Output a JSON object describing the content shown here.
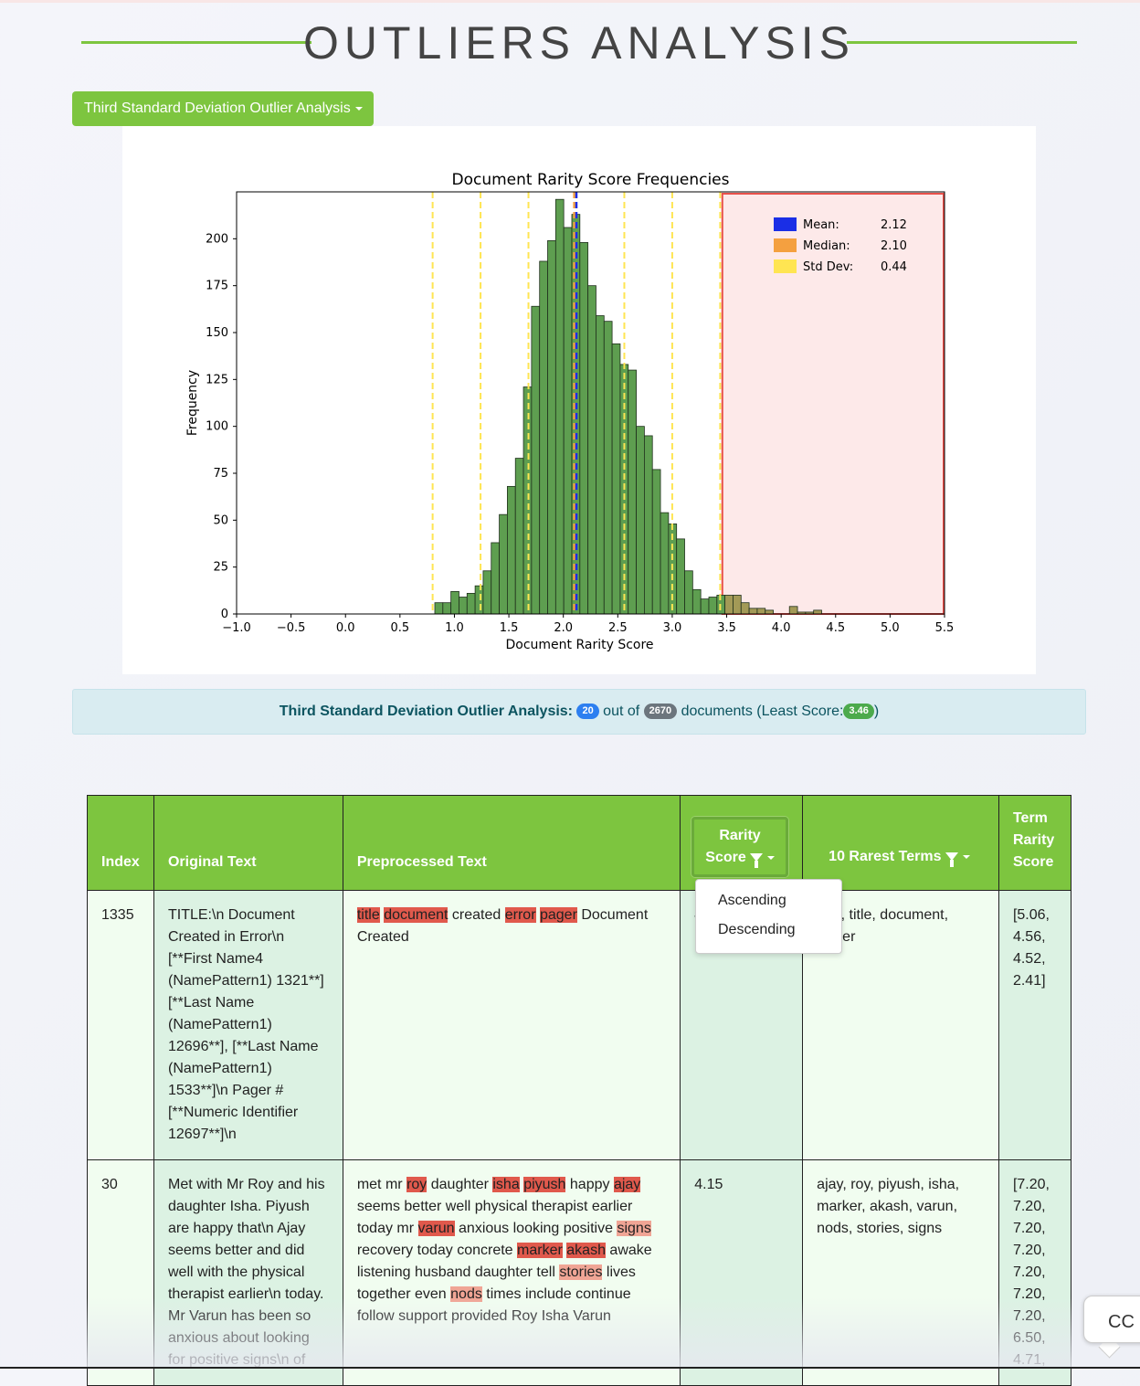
{
  "page_title": "OUTLIERS ANALYSIS",
  "colors": {
    "accent": "#7dc53f",
    "mean": "#1a2ee6",
    "median": "#f4a040",
    "std_dev": "#ffe552",
    "bars": "#5e9e50",
    "highlight": "#e0594c"
  },
  "analysis_dropdown": {
    "label": "Third Standard Deviation Outlier Analysis"
  },
  "summary": {
    "label": "Third Standard Deviation Outlier Analysis:",
    "count": "20",
    "out_of": "out of",
    "total": "2670",
    "documents": "documents (Least Score:",
    "least_score": "3.46",
    "close": ")"
  },
  "chart_data": {
    "type": "bar",
    "title": "Document Rarity Score Frequencies",
    "xlabel": "Document Rarity Score",
    "ylabel": "Frequency",
    "xlim": [
      -1.0,
      5.5
    ],
    "ylim": [
      0,
      225
    ],
    "x_ticks": [
      "−1.0",
      "−0.5",
      "0.0",
      "0.5",
      "1.0",
      "1.5",
      "2.0",
      "2.5",
      "3.0",
      "3.5",
      "4.0",
      "4.5",
      "5.0",
      "5.5"
    ],
    "x_tick_values": [
      -1.0,
      -0.5,
      0.0,
      0.5,
      1.0,
      1.5,
      2.0,
      2.5,
      3.0,
      3.5,
      4.0,
      4.5,
      5.0,
      5.5
    ],
    "y_ticks": [
      "0",
      "25",
      "50",
      "75",
      "100",
      "125",
      "150",
      "175",
      "200"
    ],
    "y_tick_values": [
      0,
      25,
      50,
      75,
      100,
      125,
      150,
      175,
      200
    ],
    "bin_start": 0.82,
    "bin_width": 0.074,
    "values": [
      6,
      6,
      12,
      9,
      11,
      15,
      23,
      38,
      53,
      68,
      83,
      121,
      164,
      188,
      199,
      221,
      206,
      213,
      198,
      175,
      159,
      156,
      144,
      133,
      130,
      100,
      95,
      77,
      54,
      48,
      40,
      23,
      13,
      8,
      9,
      10,
      10,
      10,
      6,
      3,
      3,
      2,
      0,
      0,
      4,
      1,
      1,
      2
    ],
    "mean_line": 2.12,
    "median_line": 2.1,
    "std_lines": [
      0.8,
      1.24,
      1.68,
      2.56,
      3.0,
      3.44
    ],
    "outlier_region": [
      3.46,
      5.5
    ],
    "legend": [
      {
        "name": "Mean:",
        "value": "2.12"
      },
      {
        "name": "Median:",
        "value": "2.10"
      },
      {
        "name": "Std Dev:",
        "value": "0.44"
      }
    ],
    "legend_position": "top-right"
  },
  "table": {
    "headers": {
      "index": "Index",
      "original": "Original Text",
      "preprocessed": "Preprocessed Text",
      "rarity_line1": "Rarity",
      "rarity_line2": "Score",
      "rarest": "10 Rarest Terms",
      "term_line1": "Term",
      "term_line2": "Rarity",
      "term_line3": "Score"
    },
    "sort_menu": {
      "ascending": "Ascending",
      "descending": "Descending"
    },
    "rows": [
      {
        "index": "1335",
        "original_lines": [
          "TITLE:\\n Document",
          "Created in Error\\n",
          "[**First Name4",
          "(NamePattern1) 1321**]",
          "[**Last Name",
          "(NamePattern1)",
          "12696**], [**Last Name",
          "(NamePattern1)",
          "1533**]\\n Pager #",
          "[**Numeric Identifier",
          "12697**]\\n"
        ],
        "pre": {
          "w1": "title",
          "w2": "document",
          "t1": "created",
          "w3": "error",
          "w4": "pager",
          "t2": "Document",
          "t3": "Created"
        },
        "rarity_score": "4",
        "rarest_terms": "error, title, document, pager",
        "rarest_visible_line1": "r, title, document,",
        "rarest_visible_line2": "er",
        "term_scores": [
          "[5.06,",
          "4.56,",
          "4.52,",
          "2.41]"
        ]
      },
      {
        "index": "30",
        "original_lines": [
          "Met with Mr Roy and his",
          "daughter Isha. Piyush",
          "are happy that\\n Ajay",
          "seems better and did",
          "well with the physical",
          "therapist earlier\\n today.",
          "Mr Varun has been so",
          "anxious about looking",
          "for positive signs\\n of"
        ],
        "pre": {
          "t1": "met mr",
          "w1": "roy",
          "t2": "daughter",
          "w2": "isha",
          "w3": "piyush",
          "t3": "happy",
          "w4": "ajay",
          "t4": "seems better well physical therapist earlier",
          "t5": "today mr",
          "w5": "varun",
          "t6": "anxious looking positive",
          "w6": "signs",
          "t7": "recovery today concrete",
          "w7": "marker",
          "w8": "akash",
          "t8": "awake",
          "t9": "listening husband daughter tell",
          "w9": "stories",
          "t10": "lives",
          "t11": "together even",
          "w10": "nods",
          "t12": "times include continue",
          "t13": "follow support provided Roy Isha Varun"
        },
        "rarity_score": "4.15",
        "rarest_lines": [
          "ajay, roy, piyush, isha,",
          "marker, akash, varun,",
          "nods, stories, signs"
        ],
        "term_scores": [
          "[7.20,",
          "7.20,",
          "7.20,",
          "7.20,",
          "7.20,",
          "7.20,",
          "7.20,",
          "6.50,",
          "4.71,"
        ]
      }
    ]
  },
  "cc_button": {
    "label": "CC"
  }
}
